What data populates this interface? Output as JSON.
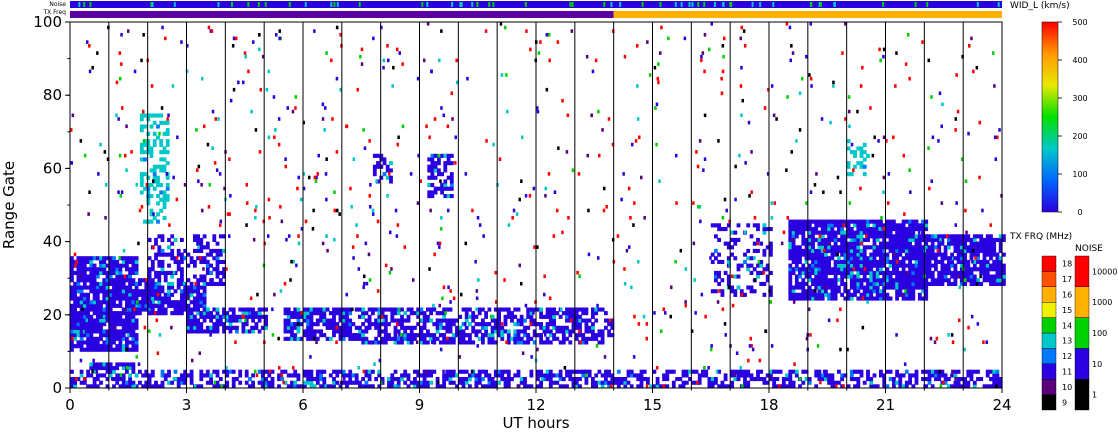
{
  "chart_data": {
    "type": "heatmap",
    "xlabel": "UT hours",
    "ylabel": "Range Gate",
    "xlim": [
      0,
      24
    ],
    "ylim": [
      0,
      100
    ],
    "x_ticks": [
      "0",
      "3",
      "6",
      "9",
      "12",
      "15",
      "18",
      "21",
      "24"
    ],
    "y_ticks": [
      "0",
      "20",
      "40",
      "60",
      "80",
      "100"
    ],
    "hour_lines": [
      1,
      2,
      3,
      4,
      5,
      6,
      7,
      8,
      9,
      10,
      11,
      12,
      13,
      14,
      15,
      16,
      17,
      18,
      19,
      20,
      21,
      22,
      23
    ],
    "status_bars": {
      "noise_label": "Noise",
      "txfreq_label": "TX Freq",
      "noise_color": "#2a00e0",
      "txfreq_segments": [
        {
          "from": 0,
          "to": 14,
          "color": "#5a00a0"
        },
        {
          "from": 14,
          "to": 24,
          "color": "#ffb000"
        }
      ]
    },
    "colorbar_width": {
      "title": "WID_L (km/s)",
      "ticks": [
        "0",
        "100",
        "200",
        "300",
        "400",
        "500"
      ],
      "gradient": [
        "#2a00e0",
        "#0066ff",
        "#00c8c8",
        "#00e000",
        "#e8e800",
        "#ff9900",
        "#ff0000"
      ]
    },
    "colorbar_txfrq": {
      "title": "TX FRQ (MHz)",
      "labels": [
        "9",
        "10",
        "11",
        "12",
        "13",
        "14",
        "15",
        "16",
        "17",
        "18"
      ],
      "colors": [
        "#000000",
        "#5a007a",
        "#2a00e0",
        "#0078ff",
        "#00c8c8",
        "#00d000",
        "#f0f000",
        "#ffb000",
        "#ff5000",
        "#ff0000"
      ]
    },
    "colorbar_noise": {
      "title": "NOISE",
      "labels": [
        "1",
        "10",
        "100",
        "1000",
        "10000"
      ],
      "colors": [
        "#000000",
        "#2a00e0",
        "#00d000",
        "#ffb000",
        "#ff0000"
      ]
    },
    "echo_regions": [
      {
        "x0": 0.0,
        "x1": 1.7,
        "g0": 10,
        "g1": 36,
        "color": "#2a00e0",
        "density": 0.85
      },
      {
        "x0": 1.5,
        "x1": 2.3,
        "g0": 20,
        "g1": 30,
        "color": "#2a00e0",
        "density": 0.8
      },
      {
        "x0": 2.0,
        "x1": 3.5,
        "g0": 20,
        "g1": 28,
        "color": "#2a00e0",
        "density": 0.75
      },
      {
        "x0": 2.0,
        "x1": 4.0,
        "g0": 28,
        "g1": 42,
        "color": "#2a00e0",
        "density": 0.45
      },
      {
        "x0": 3.0,
        "x1": 5.0,
        "g0": 15,
        "g1": 22,
        "color": "#2a00e0",
        "density": 0.75
      },
      {
        "x0": 5.5,
        "x1": 7.5,
        "g0": 13,
        "g1": 22,
        "color": "#2a00e0",
        "density": 0.8
      },
      {
        "x0": 7.5,
        "x1": 14.0,
        "g0": 12,
        "g1": 22,
        "color": "#2a00e0",
        "density": 0.6
      },
      {
        "x0": 1.8,
        "x1": 2.5,
        "g0": 45,
        "g1": 75,
        "color": "#00c8c8",
        "density": 0.35
      },
      {
        "x0": 7.8,
        "x1": 8.3,
        "g0": 56,
        "g1": 64,
        "color": "#2a00e0",
        "density": 0.4
      },
      {
        "x0": 9.2,
        "x1": 9.8,
        "g0": 52,
        "g1": 64,
        "color": "#2a00e0",
        "density": 0.6
      },
      {
        "x0": 16.5,
        "x1": 18.0,
        "g0": 25,
        "g1": 45,
        "color": "#2a00e0",
        "density": 0.3
      },
      {
        "x0": 18.5,
        "x1": 22.0,
        "g0": 24,
        "g1": 46,
        "color": "#2a00e0",
        "density": 0.85
      },
      {
        "x0": 22.0,
        "x1": 24.0,
        "g0": 28,
        "g1": 42,
        "color": "#2a00e0",
        "density": 0.8
      },
      {
        "x0": 0.0,
        "x1": 24.0,
        "g0": 0,
        "g1": 5,
        "color": "#2a00e0",
        "density": 0.55
      },
      {
        "x0": 0.5,
        "x1": 1.6,
        "g0": 5,
        "g1": 7,
        "color": "#2a00e0",
        "density": 0.9
      },
      {
        "x0": 20.0,
        "x1": 20.5,
        "g0": 58,
        "g1": 68,
        "color": "#00c8c8",
        "density": 0.4
      }
    ],
    "scatter_colors": [
      "#ff0000",
      "#ff0000",
      "#ff0000",
      "#2a00e0",
      "#2a00e0",
      "#00c8c8",
      "#00d000",
      "#000000",
      "#5a007a"
    ],
    "grid": false
  }
}
